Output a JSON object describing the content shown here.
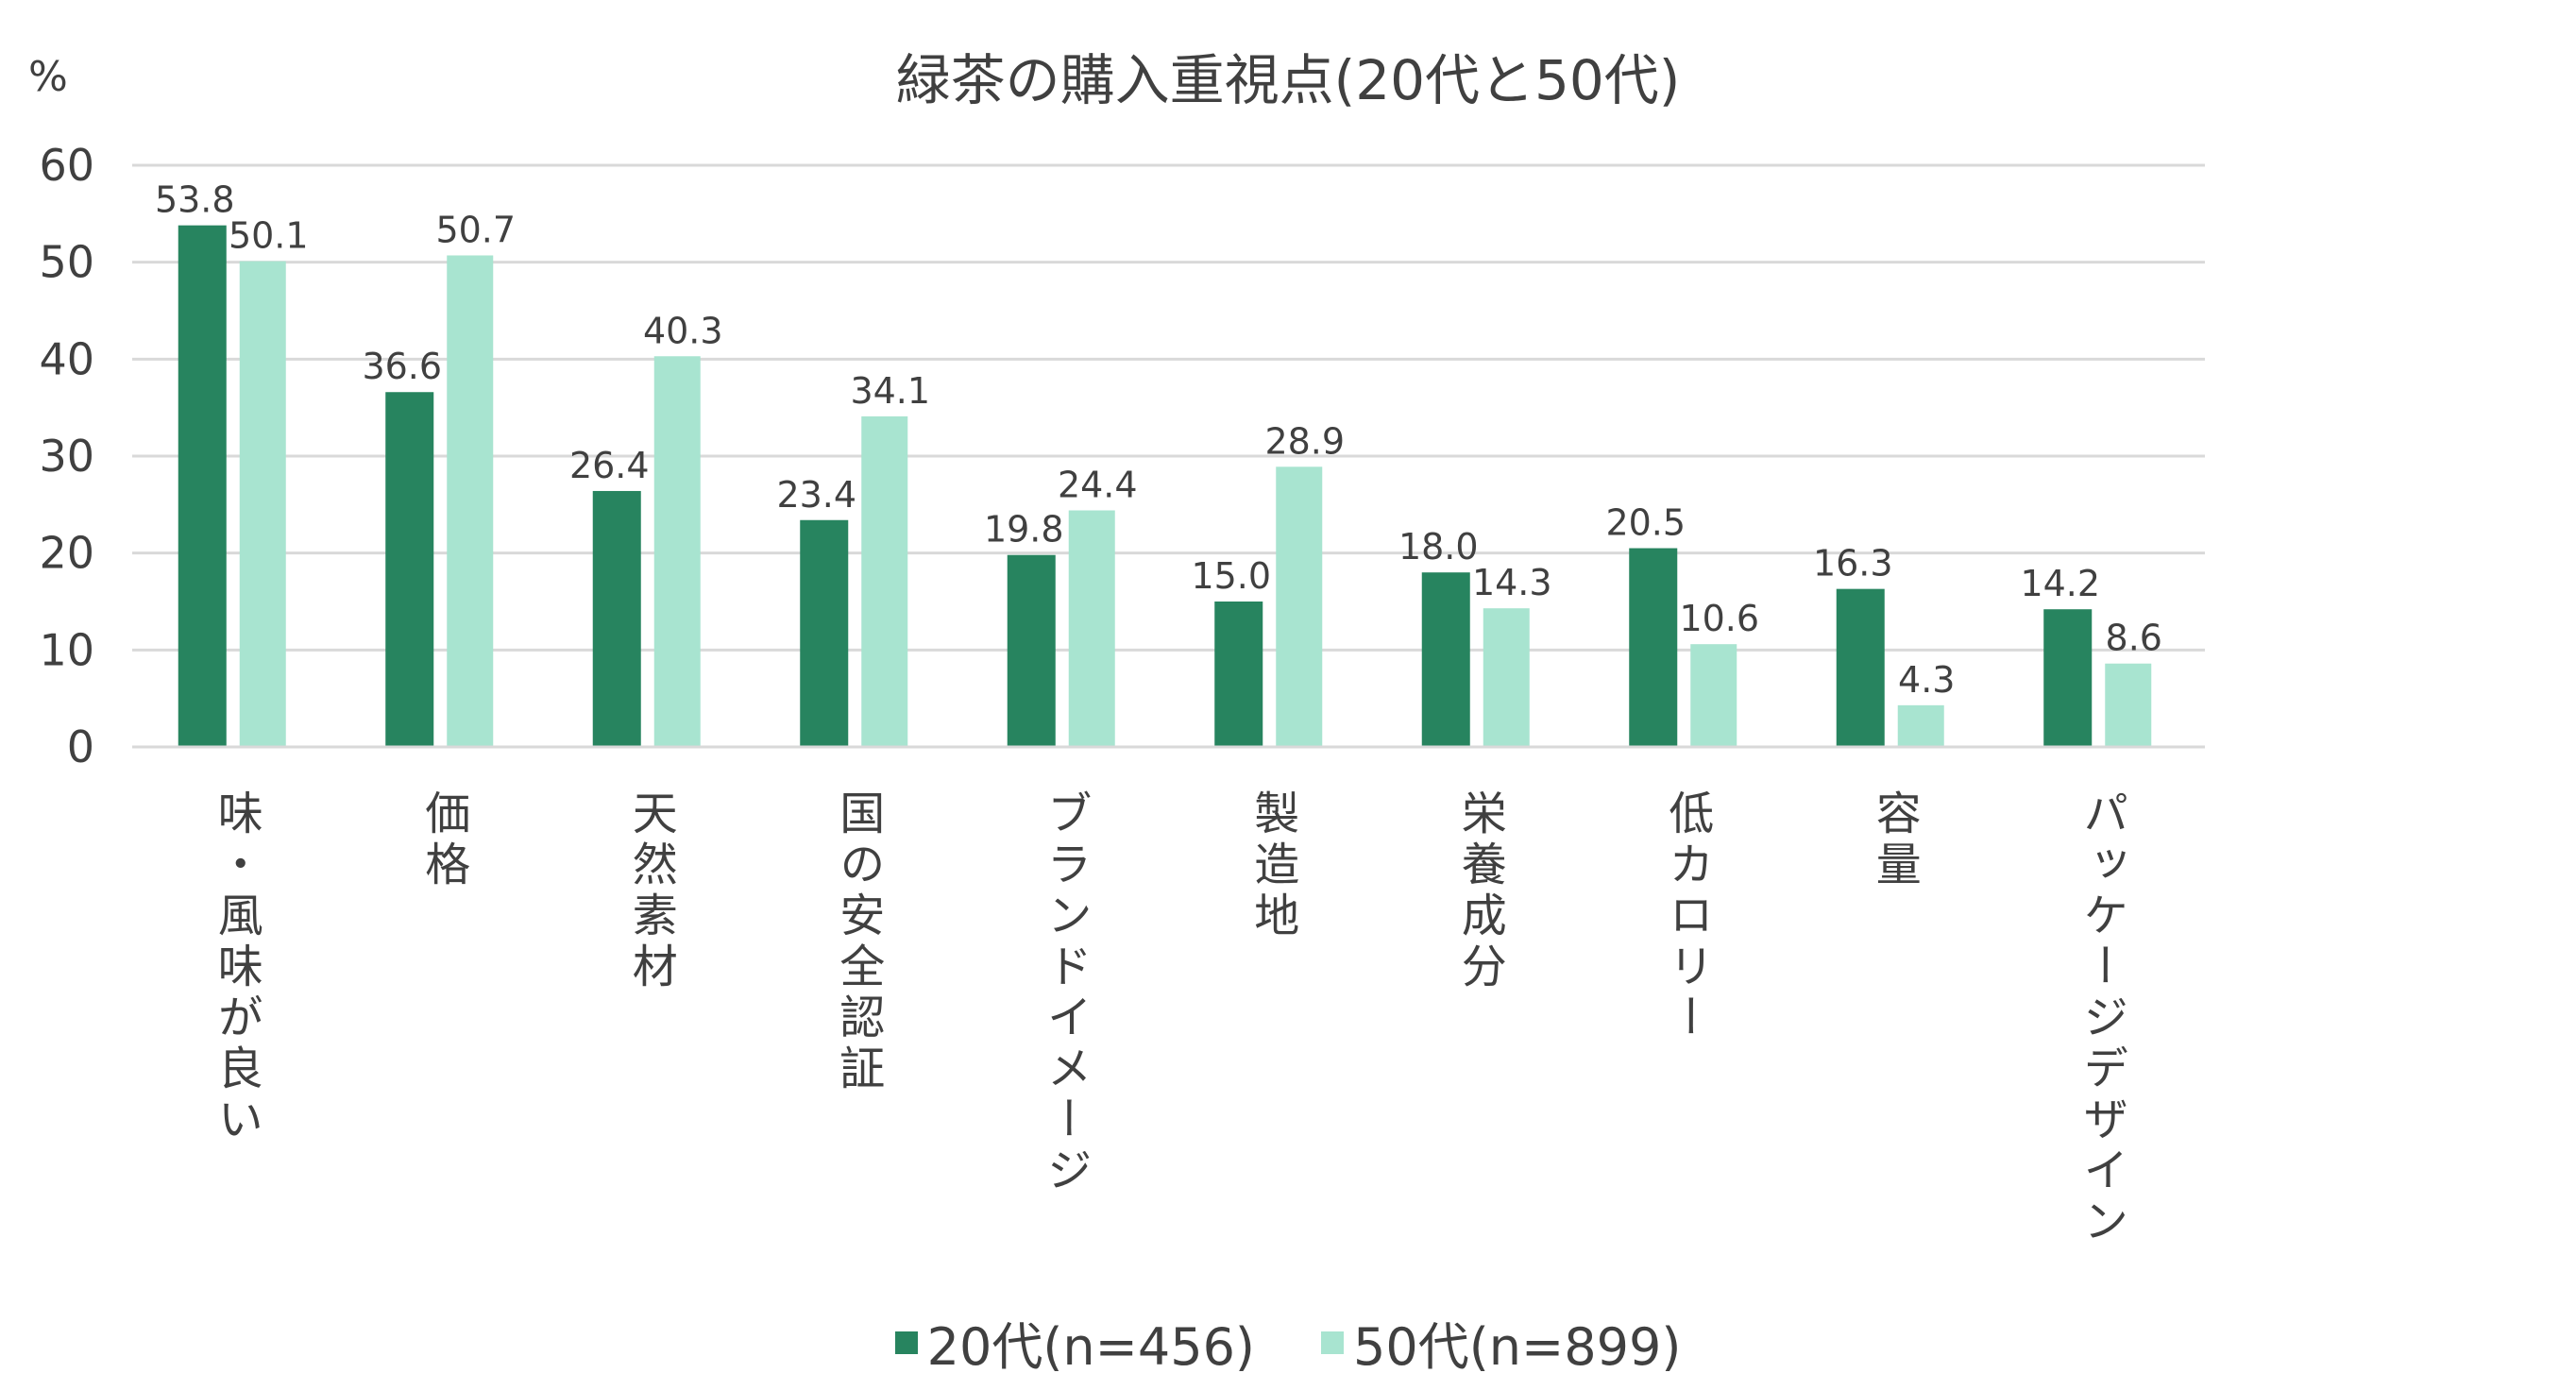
{
  "chart_data": {
    "type": "bar",
    "title": "緑茶の購入重視点(20代と50代)",
    "ylabel": "%",
    "ylim": [
      0,
      60
    ],
    "yticks": [
      0,
      10,
      20,
      30,
      40,
      50,
      60
    ],
    "grid": true,
    "legend_placement": "bottom",
    "categories": [
      "味・風味が良い",
      "価格",
      "天然素材",
      "国の安全認証",
      "ブランドイメージ",
      "製造地",
      "栄養成分",
      "低カロリー",
      "容量",
      "パッケージデザイン"
    ],
    "series": [
      {
        "name": "20代(n=456)",
        "color": "#27845f",
        "values": [
          53.8,
          36.6,
          26.4,
          23.4,
          19.8,
          15.0,
          18.0,
          20.5,
          16.3,
          14.2
        ]
      },
      {
        "name": "50代(n=899)",
        "color": "#a8e4d0",
        "values": [
          50.1,
          50.7,
          40.3,
          34.1,
          24.4,
          28.9,
          14.3,
          10.6,
          4.3,
          8.6
        ]
      }
    ]
  }
}
